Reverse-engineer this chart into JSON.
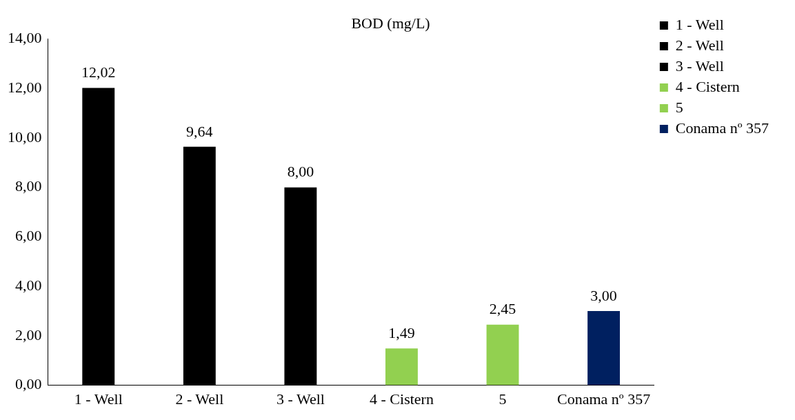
{
  "chart_data": {
    "type": "bar",
    "title": "BOD (mg/L)",
    "categories": [
      "1 - Well",
      "2 - Well",
      "3 - Well",
      "4 - Cistern",
      "5",
      "Conama nº 357"
    ],
    "series": [
      {
        "name": "1 - Well",
        "color": "#000000",
        "values": [
          12.02,
          null,
          null,
          null,
          null,
          null
        ],
        "value_labels": [
          "12,02",
          null,
          null,
          null,
          null,
          null
        ]
      },
      {
        "name": "2 - Well",
        "color": "#000000",
        "values": [
          null,
          9.64,
          null,
          null,
          null,
          null
        ],
        "value_labels": [
          null,
          "9,64",
          null,
          null,
          null,
          null
        ]
      },
      {
        "name": "3 - Well",
        "color": "#000000",
        "values": [
          null,
          null,
          8.0,
          null,
          null,
          null
        ],
        "value_labels": [
          null,
          null,
          "8,00",
          null,
          null,
          null
        ]
      },
      {
        "name": "4 - Cistern",
        "color": "#92d050",
        "values": [
          null,
          null,
          null,
          1.49,
          null,
          null
        ],
        "value_labels": [
          null,
          null,
          null,
          "1,49",
          null,
          null
        ]
      },
      {
        "name": "5",
        "color": "#92d050",
        "values": [
          null,
          null,
          null,
          null,
          2.45,
          null
        ],
        "value_labels": [
          null,
          null,
          null,
          null,
          "2,45",
          null
        ]
      },
      {
        "name": "Conama nº 357",
        "color": "#002060",
        "values": [
          null,
          null,
          null,
          null,
          null,
          3.0
        ],
        "value_labels": [
          null,
          null,
          null,
          null,
          null,
          "3,00"
        ]
      }
    ],
    "ylim": [
      0,
      14
    ],
    "yticks": [
      {
        "value": 0,
        "label": "0,00"
      },
      {
        "value": 2,
        "label": "2,00"
      },
      {
        "value": 4,
        "label": "4,00"
      },
      {
        "value": 6,
        "label": "6,00"
      },
      {
        "value": 8,
        "label": "8,00"
      },
      {
        "value": 10,
        "label": "10,00"
      },
      {
        "value": 12,
        "label": "12,00"
      },
      {
        "value": 14,
        "label": "14,00"
      }
    ],
    "grid": false,
    "legend": "top right"
  }
}
